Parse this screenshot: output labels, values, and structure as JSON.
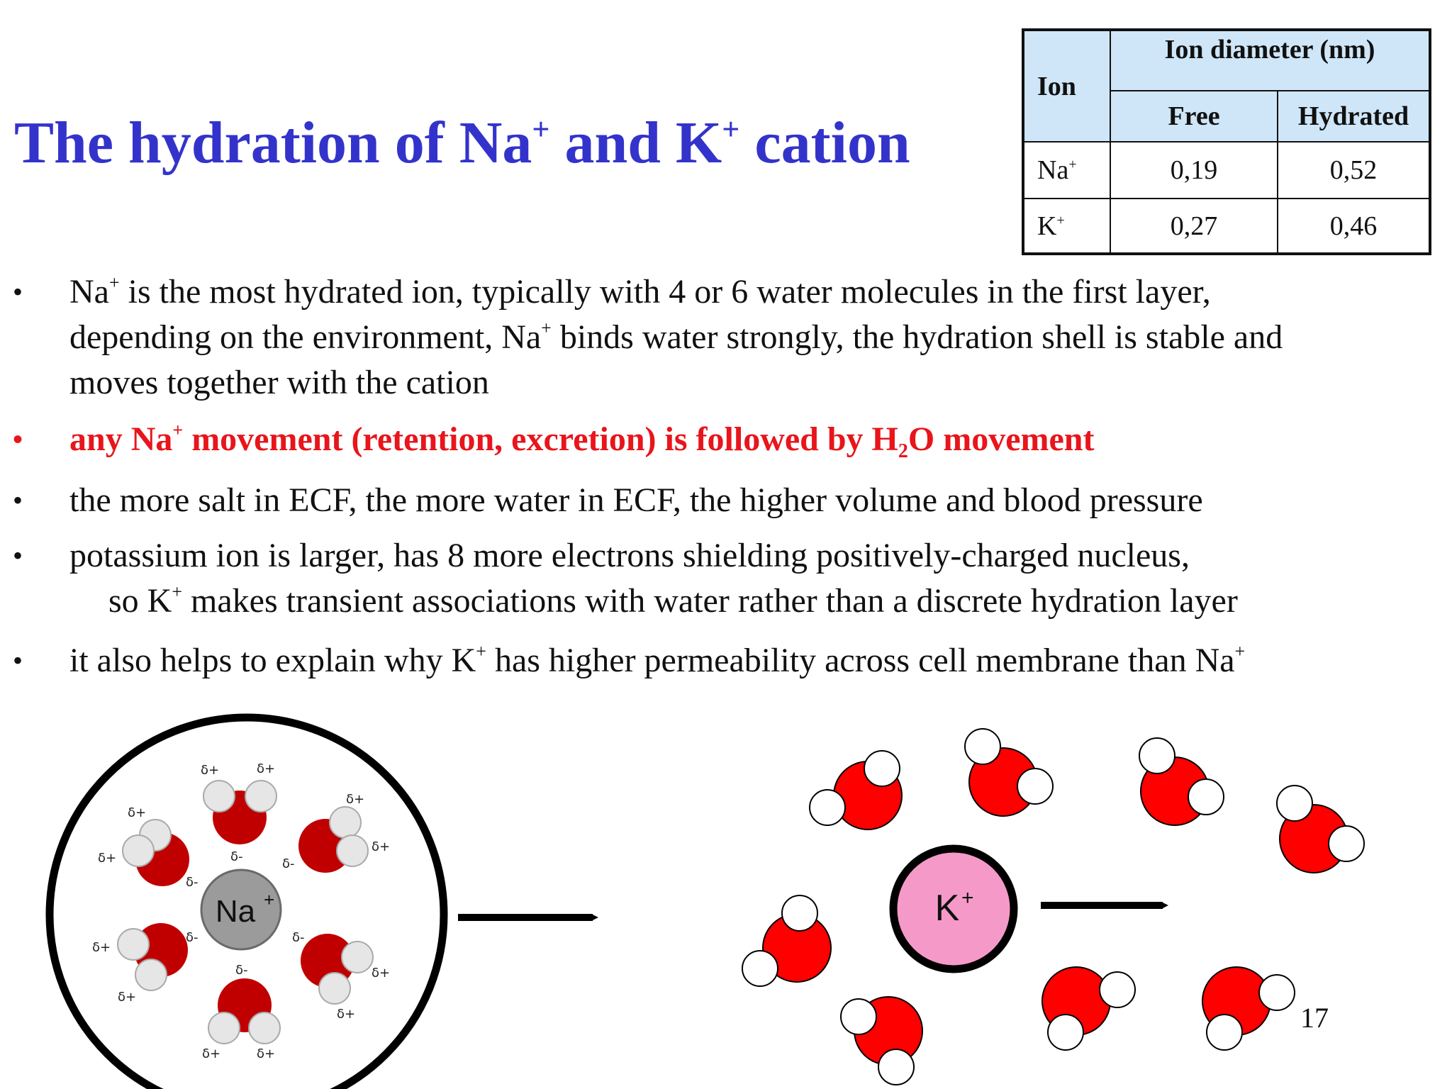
{
  "title": {
    "part1": "The hydration of Na",
    "sup1": "+",
    "part2": " and K",
    "sup2": "+",
    "part3": " cation"
  },
  "table": {
    "ion_header": "Ion",
    "diameter_header": "Ion diameter (nm)",
    "free_header": "Free",
    "hydrated_header": "Hydrated",
    "rows": [
      {
        "ion": "Na",
        "charge": "+",
        "free": "0,19",
        "hydrated": "0,52"
      },
      {
        "ion": "K",
        "charge": "+",
        "free": "0,27",
        "hydrated": "0,46"
      }
    ]
  },
  "bullets": {
    "marker": "•",
    "b1": {
      "l1a": "Na",
      "l1sup": "+",
      "l1b": " is the most hydrated ion, typically with 4 or 6 water molecules in the first layer,",
      "l2a": "depending on the environment, Na",
      "l2sup": "+",
      "l2b": " binds water strongly, the hydration shell is stable and",
      "l3": "moves together with the cation"
    },
    "b2": {
      "a": "any Na",
      "sup": "+",
      "b": " movement (retention, excretion) is followed by H",
      "sub": "2",
      "c": "O movement"
    },
    "b3": "the more salt in ECF, the more water in ECF, the higher volume and blood pressure",
    "b4": {
      "l1": "potassium ion is larger, has 8 more electrons shielding positively-charged nucleus,",
      "l2a": "so K",
      "l2sup": "+",
      "l2b": " makes transient associations with water rather than a discrete hydration layer"
    },
    "b5": {
      "a": "it also helps to explain why K",
      "sup1": "+",
      "b": " has higher permeability across cell membrane than Na",
      "sup2": "+"
    }
  },
  "diagram": {
    "na_label": "Na",
    "na_charge": "+",
    "k_label": "K",
    "k_charge": "+",
    "delta_plus": "δ+",
    "delta_minus": "δ-"
  },
  "page_number": "17",
  "colors": {
    "title": "#3333cc",
    "highlight_red": "#e8151b",
    "table_header_bg": "#cfe6f8",
    "na_ion": "#9b9b9b",
    "k_ion": "#f59ac8",
    "oxygen_dark": "#c00000",
    "oxygen_bright": "#ff0000"
  }
}
